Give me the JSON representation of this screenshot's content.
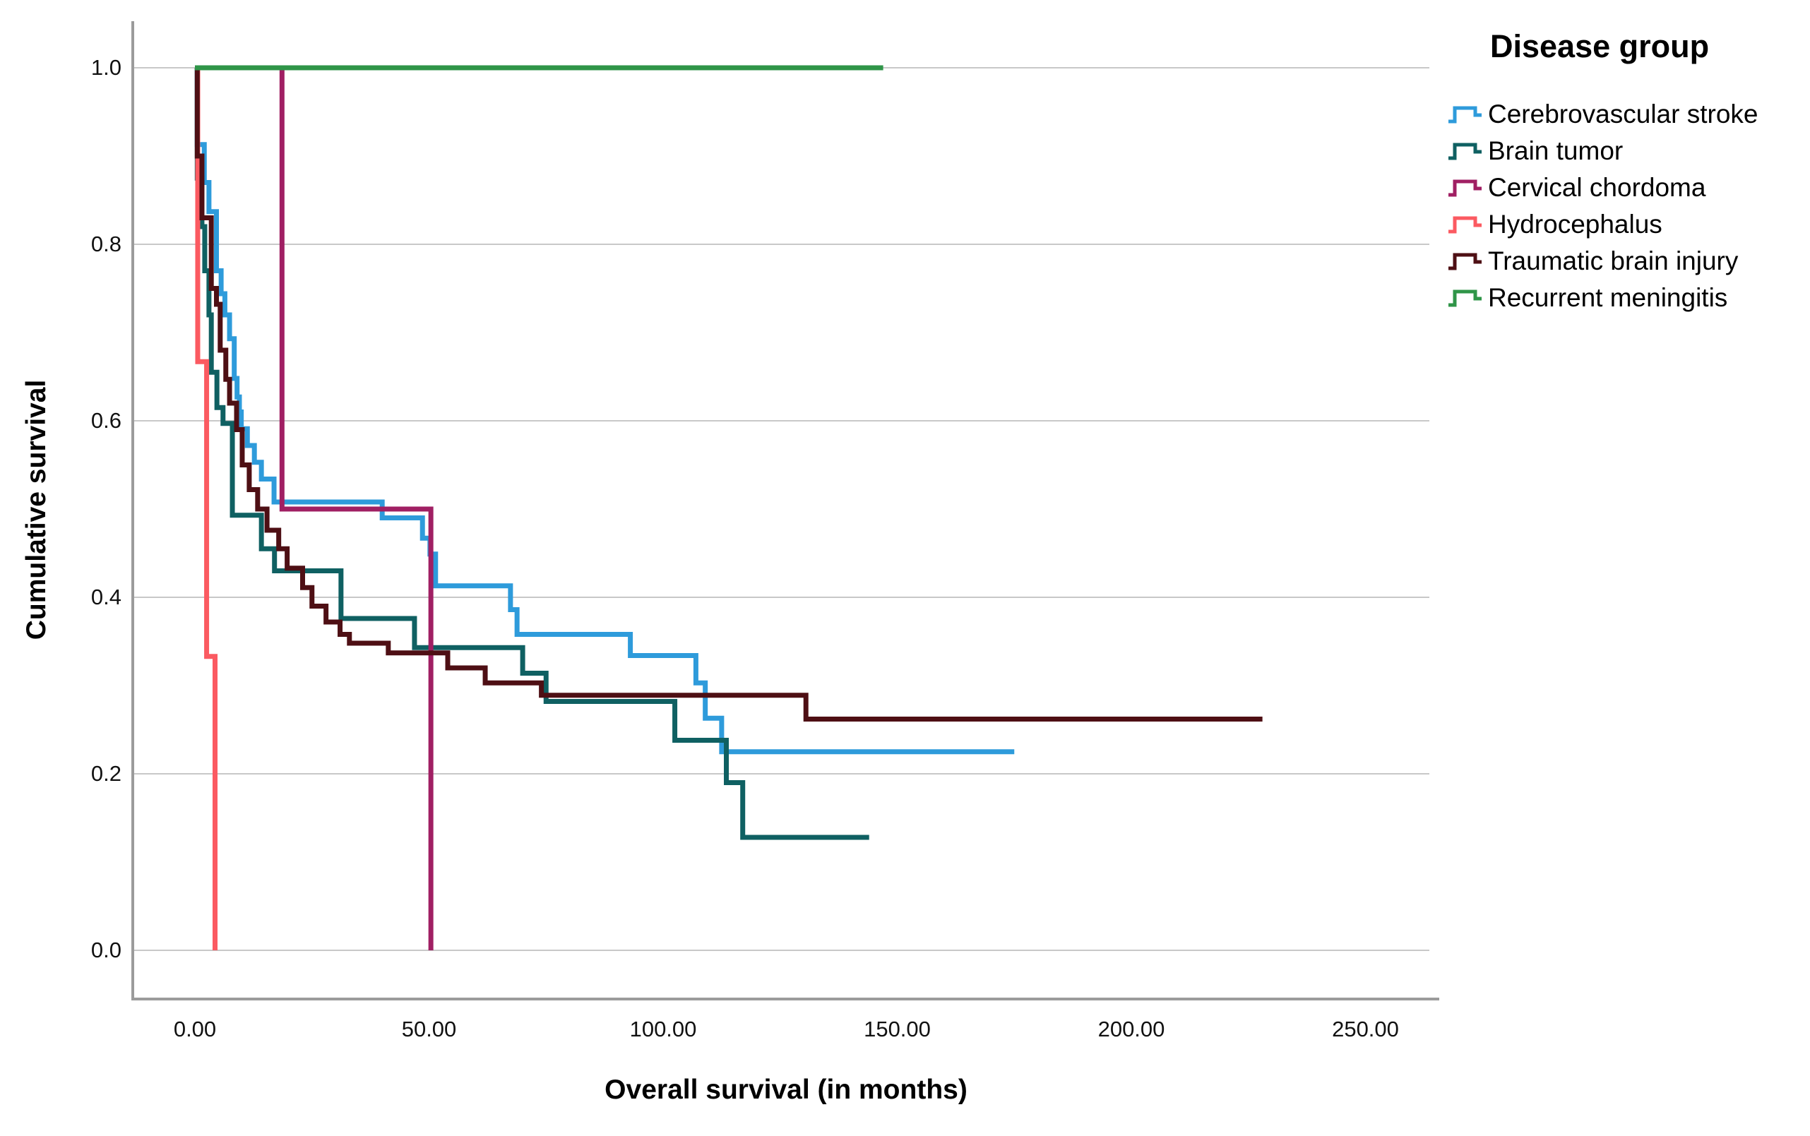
{
  "chart_data": {
    "type": "line",
    "variant": "kaplan_meier_step",
    "title": "",
    "xlabel": "Overall survival (in months)",
    "ylabel": "Cumulative survival",
    "legend_title": "Disease group",
    "legend_position": "right",
    "grid": "horizontal",
    "background": "#FFFFFF",
    "axis_color": "#9B9B9B",
    "gridline_color": "#C8C8C8",
    "text_color": "#000000",
    "xlim": [
      0,
      250
    ],
    "ylim": [
      0.0,
      1.0
    ],
    "x_tick_values": [
      0,
      50,
      100,
      150,
      200,
      250
    ],
    "x_tick_labels": [
      "0.00",
      "50.00",
      "100.00",
      "150.00",
      "200.00",
      "250.00"
    ],
    "y_tick_values": [
      1.0,
      0.8,
      0.6,
      0.4,
      0.2,
      0.0
    ],
    "y_tick_labels": [
      "1.0",
      "0.8",
      "0.6",
      "0.4",
      "0.2",
      "0.0"
    ],
    "series": [
      {
        "name": "Cerebrovascular stroke",
        "color": "#2E9BDB",
        "points": [
          [
            0,
            1.0
          ],
          [
            0.5,
            0.913
          ],
          [
            2,
            0.87
          ],
          [
            3,
            0.837
          ],
          [
            4.6,
            0.77
          ],
          [
            5.6,
            0.744
          ],
          [
            6.4,
            0.72
          ],
          [
            7.4,
            0.693
          ],
          [
            8.4,
            0.648
          ],
          [
            9.0,
            0.627
          ],
          [
            9.5,
            0.61
          ],
          [
            9.9,
            0.591
          ],
          [
            11.2,
            0.572
          ],
          [
            12.7,
            0.553
          ],
          [
            14.2,
            0.534
          ],
          [
            16.9,
            0.508
          ],
          [
            40,
            0.49
          ],
          [
            48.6,
            0.467
          ],
          [
            50.2,
            0.449
          ],
          [
            51.4,
            0.413
          ],
          [
            67.4,
            0.386
          ],
          [
            68.8,
            0.358
          ],
          [
            93,
            0.334
          ],
          [
            107,
            0.303
          ],
          [
            109,
            0.263
          ],
          [
            112.5,
            0.225
          ],
          [
            175,
            0.225
          ]
        ]
      },
      {
        "name": "Brain tumor",
        "color": "#0F6062",
        "points": [
          [
            0,
            1.0
          ],
          [
            0.5,
            0.875
          ],
          [
            1.5,
            0.82
          ],
          [
            2.1,
            0.77
          ],
          [
            3.0,
            0.72
          ],
          [
            3.5,
            0.655
          ],
          [
            4.7,
            0.615
          ],
          [
            6.0,
            0.597
          ],
          [
            8.0,
            0.493
          ],
          [
            14.2,
            0.455
          ],
          [
            17,
            0.43
          ],
          [
            31.2,
            0.376
          ],
          [
            46.9,
            0.343
          ],
          [
            70,
            0.314
          ],
          [
            75,
            0.282
          ],
          [
            102.5,
            0.238
          ],
          [
            113.5,
            0.19
          ],
          [
            117,
            0.128
          ],
          [
            144,
            0.128
          ]
        ]
      },
      {
        "name": "Cervical chordoma",
        "color": "#A01F63",
        "points": [
          [
            0,
            1.0
          ],
          [
            18.6,
            0.5
          ],
          [
            50.4,
            0.0
          ]
        ]
      },
      {
        "name": "Hydrocephalus",
        "color": "#FB5A61",
        "points": [
          [
            0,
            1.0
          ],
          [
            0.6,
            0.667
          ],
          [
            2.5,
            0.333
          ],
          [
            4.3,
            0.0
          ]
        ]
      },
      {
        "name": "Traumatic brain injury",
        "color": "#4E0F14",
        "points": [
          [
            0,
            1.0
          ],
          [
            0.5,
            0.9
          ],
          [
            1.5,
            0.83
          ],
          [
            3.5,
            0.75
          ],
          [
            4.6,
            0.732
          ],
          [
            5.4,
            0.68
          ],
          [
            6.6,
            0.647
          ],
          [
            7.4,
            0.62
          ],
          [
            8.9,
            0.59
          ],
          [
            10.1,
            0.55
          ],
          [
            11.6,
            0.522
          ],
          [
            13.4,
            0.5
          ],
          [
            15.4,
            0.476
          ],
          [
            17.9,
            0.455
          ],
          [
            19.7,
            0.433
          ],
          [
            23,
            0.411
          ],
          [
            25,
            0.39
          ],
          [
            28,
            0.372
          ],
          [
            31,
            0.358
          ],
          [
            33,
            0.348
          ],
          [
            41.3,
            0.337
          ],
          [
            54,
            0.32
          ],
          [
            62,
            0.303
          ],
          [
            74,
            0.289
          ],
          [
            130.5,
            0.262
          ],
          [
            228,
            0.262
          ]
        ]
      },
      {
        "name": "Recurrent meningitis",
        "color": "#2F9548",
        "points": [
          [
            0,
            1.0
          ],
          [
            147,
            1.0
          ]
        ]
      }
    ]
  }
}
